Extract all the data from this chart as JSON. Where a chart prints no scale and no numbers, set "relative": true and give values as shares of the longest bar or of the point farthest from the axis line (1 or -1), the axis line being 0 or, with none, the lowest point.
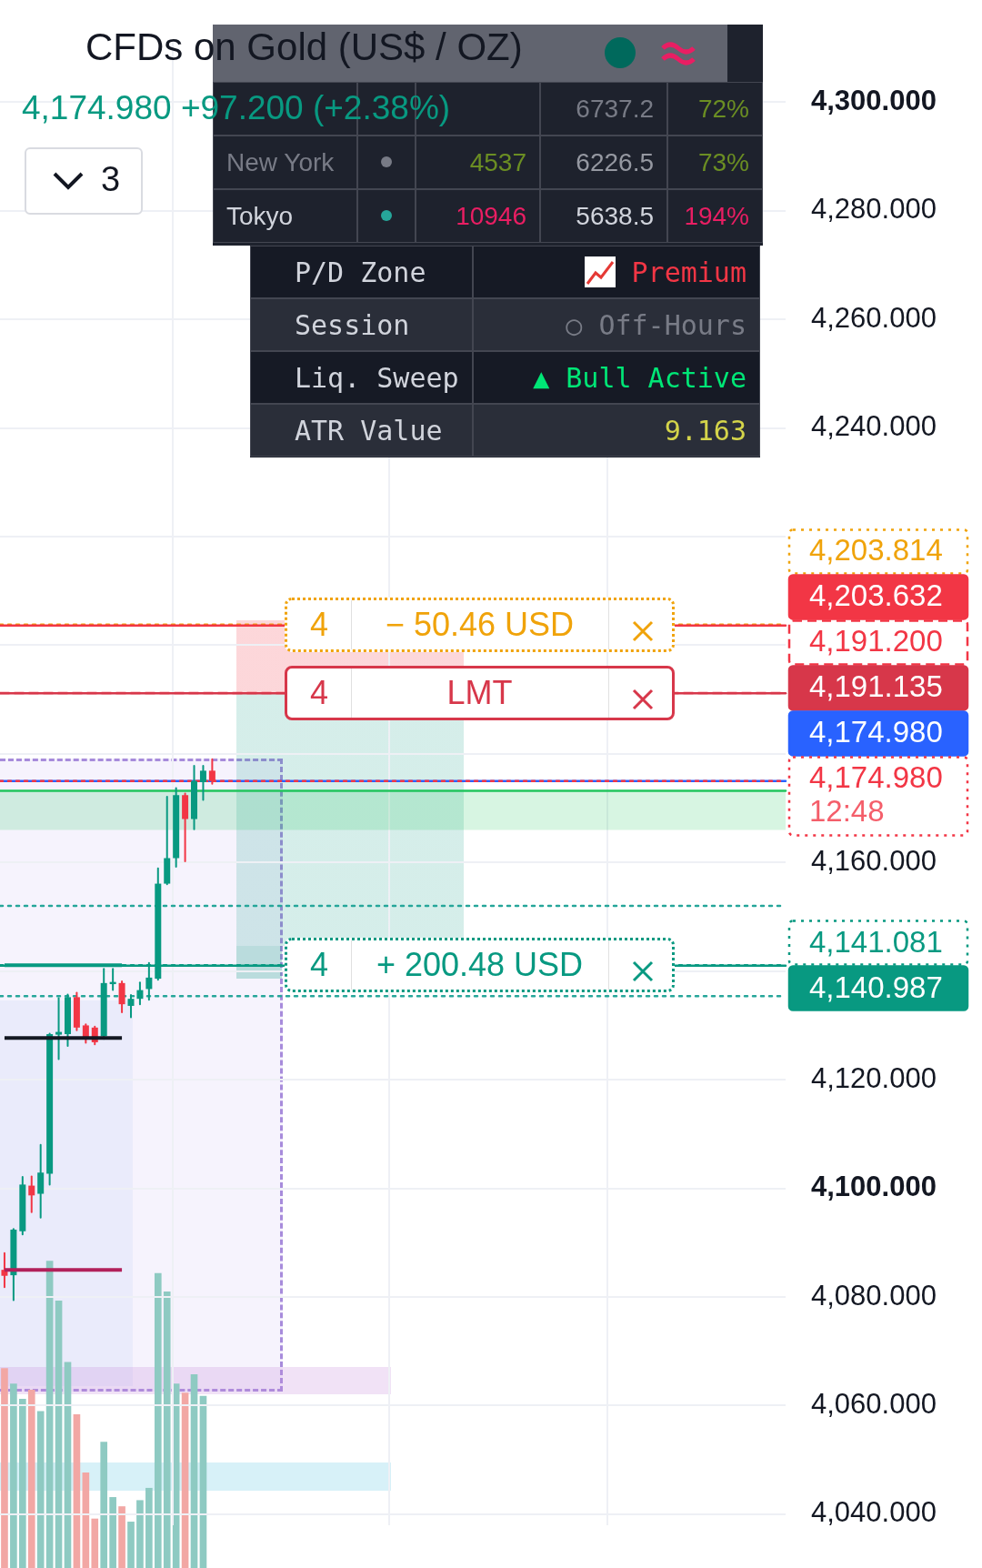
{
  "chart_data": [
    {
      "type": "candlestick",
      "title": "CFDs on Gold (US$ / OZ)",
      "subtitle": "4,174.980 +97.200 (+2.38%)",
      "annotations": [
        "3",
        "12:48",
        {
          "text": "4",
          "y": 4203.814
        },
        {
          "text": "− 50.46 USD",
          "y": 4203.814
        },
        {
          "text": "4",
          "y": 4191.135
        },
        {
          "text": "LMT",
          "y": 4191.135
        },
        {
          "text": "4",
          "y": 4141.081
        },
        {
          "text": "+ 200.48 USD",
          "y": 4141.081
        }
      ],
      "categories": [
        null,
        null,
        null,
        null,
        null,
        null,
        null,
        null,
        null,
        null,
        null,
        null,
        null,
        null,
        null,
        null,
        null,
        null,
        null,
        null,
        null,
        null,
        null,
        null,
        null,
        null,
        null,
        null,
        null,
        null,
        null,
        null,
        null,
        null,
        null,
        null,
        null,
        null,
        null,
        null,
        null,
        null,
        null,
        null,
        null,
        null,
        null,
        null,
        null,
        null,
        null,
        null,
        null,
        null,
        null,
        null,
        null,
        null,
        null,
        null,
        null,
        null,
        null,
        null,
        null,
        null,
        null,
        null,
        null,
        null,
        null,
        null,
        null,
        null,
        null,
        null,
        null,
        null,
        null,
        null,
        null,
        null,
        null,
        null,
        null,
        null,
        null
      ],
      "ohlc": [
        [
          4085.0,
          4088.1,
          4081.8,
          4083.9
        ],
        [
          4084.0,
          4092.5,
          4079.4,
          4092.4
        ],
        [
          4092.1,
          4102.1,
          4091.5,
          4100.7
        ],
        [
          4100.5,
          4102.2,
          4095.6,
          4098.7
        ],
        [
          4099.0,
          4108.0,
          4094.6,
          4102.9
        ],
        [
          4102.7,
          4128.5,
          4100.7,
          4128.4
        ],
        [
          4128.3,
          4135.0,
          4123.8,
          4128.8
        ],
        [
          4128.4,
          4135.7,
          4126.2,
          4135.2
        ],
        [
          4135.2,
          4136.0,
          4129.1,
          4129.6
        ],
        [
          4130.0,
          4130.2,
          4126.8,
          4127.6
        ],
        [
          4129.6,
          4129.8,
          4126.5,
          4126.9
        ],
        [
          4128.0,
          4140.4,
          4127.5,
          4137.8
        ],
        [
          4137.6,
          4140.4,
          4136.5,
          4138.0
        ],
        [
          4137.8,
          4138.1,
          4132.4,
          4133.9
        ],
        [
          4133.6,
          4135.6,
          4131.5,
          4134.9
        ],
        [
          4134.9,
          4137.9,
          4133.9,
          4136.5
        ],
        [
          4136.7,
          4141.5,
          4134.7,
          4138.8
        ],
        [
          4138.6,
          4158.9,
          4138.4,
          4156.1
        ],
        [
          4156.1,
          4172.1,
          4156.0,
          4160.8
        ],
        [
          4160.8,
          4173.7,
          4159.2,
          4172.4
        ],
        [
          4172.4,
          4172.7,
          4160.2,
          4168.0
        ],
        [
          4168.0,
          4177.8,
          4166.1,
          4175.0
        ],
        [
          4174.8,
          4177.8,
          4171.5,
          4176.9
        ],
        [
          4176.9,
          4179.0,
          4174.5,
          4174.98
        ],
        null,
        null,
        null,
        null,
        null,
        null,
        null,
        null,
        null,
        null,
        null,
        null,
        null,
        null,
        null,
        null,
        null,
        null,
        null,
        null,
        null,
        null,
        null,
        null,
        null,
        null,
        null,
        null,
        null,
        null,
        null,
        null,
        null,
        null,
        null,
        null,
        null,
        null,
        null,
        null,
        null,
        null,
        null,
        null,
        null,
        null,
        null,
        null,
        null,
        null,
        null,
        null,
        null,
        null,
        null,
        null,
        null,
        null,
        null,
        null,
        null,
        null,
        null
      ],
      "series": [
        {
          "type": "line",
          "color": "#089981",
          "values": [
            4141.1,
            4141.1,
            4141.1,
            4141.1,
            4141.1,
            4141.1,
            4141.1,
            4141.1,
            4141.1,
            4141.1,
            4141.1,
            4141.1,
            4141.1,
            4141.1,
            null,
            null,
            null,
            null,
            null,
            null,
            null,
            null,
            null,
            null,
            null,
            null,
            null,
            null,
            null,
            null,
            null,
            null,
            null,
            null,
            null,
            null,
            null,
            null,
            null,
            null,
            null,
            null,
            null,
            null,
            null,
            null,
            null,
            null,
            null,
            null,
            null,
            null,
            null,
            null,
            null,
            null,
            null,
            null,
            null,
            null,
            null,
            null,
            null,
            null,
            null,
            null,
            null,
            null,
            null,
            null,
            null,
            null,
            null,
            null,
            null,
            null,
            null,
            null,
            null,
            null,
            null,
            null,
            null,
            null,
            null,
            null,
            null
          ]
        },
        {
          "type": "line",
          "color": "#131722",
          "values": [
            4127.7,
            4127.7,
            4127.7,
            4127.7,
            4127.7,
            4127.7,
            4127.7,
            4127.7,
            4127.7,
            4127.7,
            4127.7,
            4127.7,
            4127.7,
            4127.7,
            null,
            null,
            null,
            null,
            null,
            null,
            null,
            null,
            null,
            null,
            null,
            null,
            null,
            null,
            null,
            null,
            null,
            null,
            null,
            null,
            null,
            null,
            null,
            null,
            null,
            null,
            null,
            null,
            null,
            null,
            null,
            null,
            null,
            null,
            null,
            null,
            null,
            null,
            null,
            null,
            null,
            null,
            null,
            null,
            null,
            null,
            null,
            null,
            null,
            null,
            null,
            null,
            null,
            null,
            null,
            null,
            null,
            null,
            null,
            null,
            null,
            null,
            null,
            null,
            null,
            null,
            null,
            null,
            null,
            null,
            null,
            null,
            null
          ]
        },
        {
          "type": "line",
          "color": "#b2205a",
          "values": [
            4085.0,
            4085.0,
            4085.0,
            4085.0,
            4085.0,
            4085.0,
            4085.0,
            4085.0,
            4085.0,
            4085.0,
            4085.0,
            4085.0,
            4085.0,
            4085.0,
            null,
            null,
            null,
            null,
            null,
            null,
            null,
            null,
            null,
            null,
            null,
            null,
            null,
            null,
            null,
            null,
            null,
            null,
            null,
            null,
            null,
            null,
            null,
            null,
            null,
            null,
            null,
            null,
            null,
            null,
            null,
            null,
            null,
            null,
            null,
            null,
            null,
            null,
            null,
            null,
            null,
            null,
            null,
            null,
            null,
            null,
            null,
            null,
            null,
            null,
            null,
            null,
            null,
            null,
            null,
            null,
            null,
            null,
            null,
            null,
            null,
            null,
            null,
            null,
            null,
            null,
            null,
            null,
            null,
            null,
            null,
            null,
            null
          ]
        }
      ],
      "ylim": [
        4037.9,
        4311
      ],
      "yticks": [
        {
          "value": 4040,
          "label": "4,040.000"
        },
        {
          "value": 4060,
          "label": "4,060.000"
        },
        {
          "value": 4080,
          "label": "4,080.000"
        },
        {
          "value": 4100,
          "label": "4,100.000"
        },
        {
          "value": 4120,
          "label": "4,120.000"
        },
        {
          "value": 4140,
          "label": null
        },
        {
          "value": 4160,
          "label": "4,160.000"
        },
        {
          "value": 4180,
          "label": null
        },
        {
          "value": 4200,
          "label": null
        },
        {
          "value": 4220,
          "label": null
        },
        {
          "value": 4240,
          "label": "4,240.000"
        },
        {
          "value": 4260,
          "label": "4,260.000"
        },
        {
          "value": 4280,
          "label": "4,280.000"
        },
        {
          "value": 4300,
          "label": "4,300.000"
        }
      ],
      "grid": true,
      "tick_labels": "y",
      "ref_lines": [
        {
          "axis": "y",
          "value": 4203.814,
          "label": "4,203.814",
          "color": "#f0a30a",
          "line_style": "dotted"
        },
        {
          "axis": "y",
          "value": 4203.632,
          "label": "4,203.632",
          "color": "#f23645",
          "line_style": "solid"
        },
        {
          "axis": "y",
          "value": 4191.2,
          "label": "4,191.200",
          "color": "#f23645",
          "line_style": "dashed"
        },
        {
          "axis": "y",
          "value": 4191.135,
          "label": "4,191.135",
          "color": "#d7374a",
          "line_style": "solid"
        },
        {
          "axis": "y",
          "value": 4174.98,
          "label": "4,174.980",
          "color": "#2962ff",
          "line_style": "solid"
        },
        {
          "axis": "y",
          "value": 4174.98,
          "label": "4,174.980",
          "color": "#f23645",
          "line_style": "dotted"
        },
        {
          "axis": "y",
          "value": 4173.2,
          "color": "#22c55e",
          "line_style": "solid"
        },
        {
          "axis": "y",
          "value": 4152.0,
          "color": "#26a69a",
          "line_style": "dotted"
        },
        {
          "axis": "y",
          "value": 4141.081,
          "label": "4,141.081",
          "color": "#089981",
          "line_style": "dotted"
        },
        {
          "axis": "y",
          "value": 4140.987,
          "label": "4,140.987",
          "color": "#089981",
          "line_style": "solid"
        },
        {
          "axis": "y",
          "value": 4135.4,
          "color": "#26a69a",
          "line_style": "dotted"
        }
      ],
      "bands": [
        {
          "axis": "y",
          "from": 4166.0,
          "to": 4173.2,
          "color": "#22c55e"
        }
      ]
    },
    {
      "type": "bar",
      "relative": true,
      "categories": [
        null,
        null,
        null,
        null,
        null,
        null,
        null,
        null,
        null,
        null,
        null,
        null,
        null,
        null,
        null,
        null,
        null,
        null,
        null,
        null,
        null,
        null,
        null,
        null,
        null,
        null,
        null,
        null,
        null,
        null,
        null,
        null,
        null,
        null,
        null,
        null,
        null,
        null,
        null,
        null,
        null,
        null,
        null,
        null,
        null,
        null,
        null,
        null,
        null,
        null,
        null,
        null,
        null,
        null,
        null,
        null,
        null,
        null,
        null,
        null,
        null,
        null,
        null,
        null,
        null,
        null,
        null,
        null,
        null,
        null,
        null,
        null,
        null,
        null,
        null,
        null,
        null,
        null,
        null,
        null,
        null,
        null,
        null,
        null,
        null,
        null,
        null
      ],
      "values": [
        0.65,
        0.6,
        0.55,
        0.58,
        0.51,
        1,
        0.87,
        0.67,
        0.5,
        0.31,
        0.16,
        0.41,
        0.23,
        0.2,
        0.15,
        0.22,
        0.26,
        0.96,
        0.9,
        0.6,
        0.57,
        0.63,
        0.56,
        null,
        null,
        null,
        null,
        null,
        null,
        null,
        null,
        null,
        null,
        null,
        null,
        null,
        null,
        null,
        null,
        null,
        null,
        null,
        null,
        null,
        null,
        null,
        null,
        null,
        null,
        null,
        null,
        null,
        null,
        null,
        null,
        null,
        null,
        null,
        null,
        null,
        null,
        null,
        null,
        null,
        null,
        null,
        null,
        null,
        null,
        null,
        null,
        null,
        null,
        null,
        null,
        null,
        null,
        null,
        null,
        null,
        null,
        null,
        null,
        null,
        null,
        null,
        null
      ],
      "colors": [
        "#f2a7a4",
        "#8ecac2",
        "#8ecac2",
        "#f2a7a4",
        "#8ecac2",
        "#8ecac2",
        "#8ecac2",
        "#8ecac2",
        "#f2a7a4",
        "#f2a7a4",
        "#f2a7a4",
        "#8ecac2",
        "#8ecac2",
        "#f2a7a4",
        "#8ecac2",
        "#8ecac2",
        "#8ecac2",
        "#8ecac2",
        "#8ecac2",
        "#8ecac2",
        "#f2a7a4",
        "#8ecac2",
        "#8ecac2",
        null,
        null,
        null,
        null,
        null,
        null,
        null,
        null,
        null,
        null,
        null,
        null,
        null,
        null,
        null,
        null,
        null,
        null,
        null,
        null,
        null,
        null,
        null,
        null,
        null,
        null,
        null,
        null,
        null,
        null,
        null,
        null,
        null,
        null,
        null,
        null,
        null,
        null,
        null,
        null,
        null,
        null,
        null,
        null,
        null,
        null,
        null,
        null,
        null,
        null,
        null,
        null,
        null,
        null,
        null,
        null,
        null,
        null,
        null,
        null,
        null,
        null,
        null,
        null
      ]
    },
    {
      "type": "other",
      "annotations": [
        "6737.2",
        "72%",
        "New York",
        "4537",
        "6226.5",
        "73%",
        "Tokyo",
        "10946",
        "5638.5",
        "194%"
      ]
    },
    {
      "type": "other",
      "annotations": [
        "P/D Zone",
        "Premium",
        "Session",
        "○ Off-Hours",
        "Liq. Sweep",
        "▲ Bull Active",
        "ATR Value",
        "9.163"
      ]
    }
  ]
}
